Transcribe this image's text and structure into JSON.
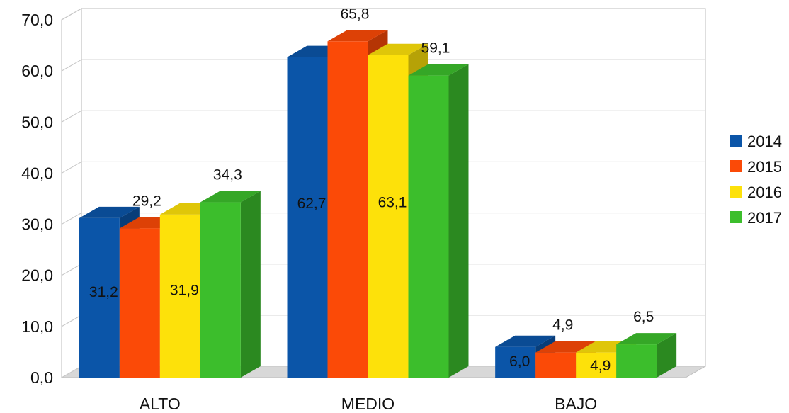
{
  "chart_data": {
    "type": "bar",
    "style": "3d-clustered",
    "title": "",
    "xlabel": "",
    "ylabel": "",
    "categories": [
      "ALTO",
      "MEDIO",
      "BAJO"
    ],
    "ylim": [
      0,
      70
    ],
    "y_ticks": [
      "0,0",
      "10,0",
      "20,0",
      "30,0",
      "40,0",
      "50,0",
      "60,0",
      "70,0"
    ],
    "grid": true,
    "legend_position": "right",
    "series": [
      {
        "name": "2014",
        "color": "#0b55a8",
        "values": [
          31.2,
          62.7,
          6.0
        ],
        "labels": [
          "31,2",
          "62,7",
          "6,0"
        ]
      },
      {
        "name": "2015",
        "color": "#fb4a07",
        "values": [
          29.2,
          65.8,
          4.9
        ],
        "labels": [
          "29,2",
          "65,8",
          "4,9"
        ]
      },
      {
        "name": "2016",
        "color": "#fde10a",
        "values": [
          31.9,
          63.1,
          4.9
        ],
        "labels": [
          "31,9",
          "63,1",
          "4,9"
        ]
      },
      {
        "name": "2017",
        "color": "#3cbe2c",
        "values": [
          34.3,
          59.1,
          6.5
        ],
        "labels": [
          "34,3",
          "59,1",
          "6,5"
        ]
      }
    ]
  }
}
